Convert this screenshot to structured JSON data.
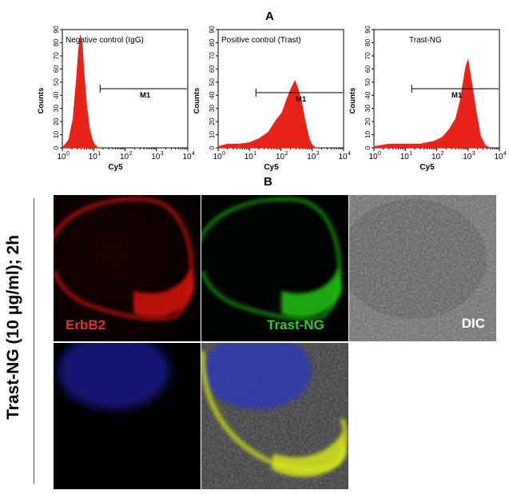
{
  "panel_a": {
    "label": "A"
  },
  "panel_b": {
    "label": "B"
  },
  "side_label": "Trast-NG (10 μg/ml); 2h",
  "colors": {
    "histogram": "#e8231a",
    "erbb2_label": "#e0312b",
    "trastng_label": "#33cc2a",
    "dic_label": "#ffffff"
  },
  "microscopy": {
    "cells": [
      {
        "name": "erbb2-channel",
        "label": "ErbB2"
      },
      {
        "name": "trast-ng-channel",
        "label": "Trast-NG"
      },
      {
        "name": "dic-channel",
        "label": "DIC"
      },
      {
        "name": "nucleus-channel",
        "label": ""
      },
      {
        "name": "merge-channel",
        "label": ""
      }
    ]
  },
  "chart_data": [
    {
      "type": "area",
      "title": "Negative control (IgG)",
      "xlabel": "Cy5",
      "ylabel": "Counts",
      "x_scale": "log",
      "xlim": [
        1,
        10000
      ],
      "ylim": [
        0,
        90
      ],
      "xticks": [
        1,
        10,
        100,
        1000,
        10000
      ],
      "xtick_labels": [
        "10^0",
        "10^1",
        "10^2",
        "10^3",
        "10^4"
      ],
      "yticks": [
        0,
        10,
        20,
        30,
        40,
        50,
        60,
        70,
        80,
        90
      ],
      "x": [
        1,
        1.6,
        2.2,
        2.8,
        3.3,
        3.8,
        4.3,
        5,
        6,
        7.5,
        9,
        11,
        14
      ],
      "y": [
        0,
        6,
        22,
        52,
        75,
        86,
        78,
        55,
        32,
        14,
        6,
        2,
        0
      ],
      "gate": {
        "label": "M1",
        "x_start": 16,
        "x_end": 10000,
        "y": 45
      }
    },
    {
      "type": "area",
      "title": "Positive control (Trast)",
      "xlabel": "Cy5",
      "ylabel": "Counts",
      "x_scale": "log",
      "xlim": [
        1,
        10000
      ],
      "ylim": [
        0,
        90
      ],
      "xticks": [
        1,
        10,
        100,
        1000,
        10000
      ],
      "xtick_labels": [
        "10^0",
        "10^1",
        "10^2",
        "10^3",
        "10^4"
      ],
      "yticks": [
        0,
        10,
        20,
        30,
        40,
        50,
        60,
        70,
        80,
        90
      ],
      "x": [
        1,
        2,
        5,
        10,
        20,
        40,
        70,
        110,
        160,
        220,
        280,
        350,
        450,
        600,
        800,
        1000,
        1300
      ],
      "y": [
        1,
        3,
        3,
        4,
        7,
        12,
        21,
        27,
        38,
        46,
        51,
        45,
        36,
        20,
        7,
        2,
        0
      ],
      "gate": {
        "label": "M1",
        "x_start": 16,
        "x_end": 10000,
        "y": 42
      }
    },
    {
      "type": "area",
      "title": "Trast-NG",
      "xlabel": "Cy5",
      "ylabel": "Counts",
      "x_scale": "log",
      "xlim": [
        1,
        10000
      ],
      "ylim": [
        0,
        90
      ],
      "xticks": [
        1,
        10,
        100,
        1000,
        10000
      ],
      "xtick_labels": [
        "10^0",
        "10^1",
        "10^2",
        "10^3",
        "10^4"
      ],
      "yticks": [
        0,
        10,
        20,
        30,
        40,
        50,
        60,
        70,
        80,
        90
      ],
      "x": [
        1,
        3,
        10,
        30,
        80,
        150,
        250,
        400,
        550,
        700,
        850,
        1000,
        1300,
        1800,
        2500,
        3500,
        5000
      ],
      "y": [
        1,
        3,
        3,
        3,
        5,
        8,
        14,
        22,
        35,
        50,
        62,
        67,
        50,
        28,
        9,
        2,
        0
      ],
      "gate": {
        "label": "M1",
        "x_start": 16,
        "x_end": 10000,
        "y": 45
      }
    }
  ]
}
